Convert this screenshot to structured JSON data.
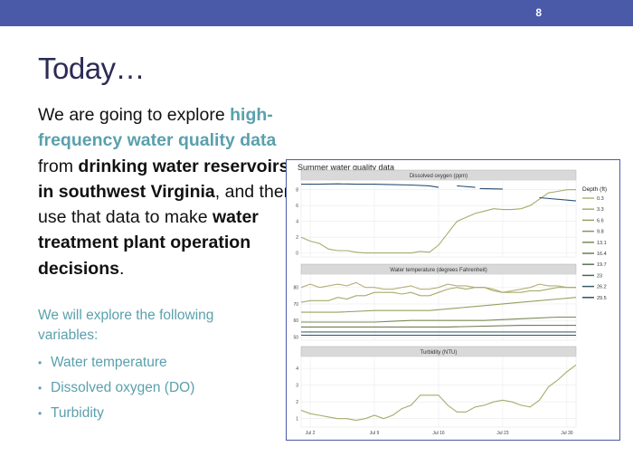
{
  "header": {
    "slide_number": "8"
  },
  "slide": {
    "title": "Today…",
    "body": {
      "p1": "We are going to explore ",
      "p2": "high-frequency water quality data",
      "p3": " from ",
      "p4": "drinking water reservoirs in southwest Virginia",
      "p5": ", and then use that data to make ",
      "p6": "water treatment plant operation decisions",
      "p7": "."
    },
    "subheading": "We will explore the following variables:",
    "bullets": [
      "Water temperature",
      "Dissolved oxygen (DO)",
      "Turbidity"
    ]
  },
  "colors": {
    "header_bar": "#4a5aa8",
    "title": "#2b2b55",
    "highlight": "#5aa0ad",
    "panel_strip": "#d9d9d9",
    "grid": "#ebebeb",
    "frame": "#4a5aa8"
  },
  "chart_data": {
    "type": "line",
    "title": "Summer water quality data",
    "x_ticks": [
      "Jul 2",
      "Jul 9",
      "Jul 16",
      "Jul 23",
      "Jul 30"
    ],
    "x_tick_days": [
      2,
      9,
      16,
      23,
      30
    ],
    "xlim": [
      1,
      31
    ],
    "legend": {
      "title": "Depth (ft)",
      "placement": "right",
      "entries": [
        {
          "label": "0.3",
          "color": "#b5b079"
        },
        {
          "label": "3.3",
          "color": "#a7ab6a"
        },
        {
          "label": "6.6",
          "color": "#96a05f"
        },
        {
          "label": "9.8",
          "color": "#879558"
        },
        {
          "label": "13.1",
          "color": "#798a55"
        },
        {
          "label": "16.4",
          "color": "#6a7f55"
        },
        {
          "label": "19.7",
          "color": "#5b7459"
        },
        {
          "label": "23",
          "color": "#4a6760"
        },
        {
          "label": "26.2",
          "color": "#395b69"
        },
        {
          "label": "29.5",
          "color": "#2a4f74"
        }
      ]
    },
    "panels": [
      {
        "title": "Dissolved oxygen (ppm)",
        "yticks": [
          0,
          2,
          4,
          6,
          8
        ],
        "ylim": [
          -0.5,
          9
        ],
        "series": [
          {
            "color": "#a7ab6a",
            "x": [
              1,
              2,
              3,
              4,
              5,
              6,
              7,
              8,
              9,
              10,
              11,
              12,
              13,
              14,
              15,
              16,
              17,
              18,
              19,
              20,
              21,
              22,
              23,
              24,
              25,
              26,
              27,
              28,
              29,
              30,
              31
            ],
            "y": [
              2.0,
              1.5,
              1.2,
              0.5,
              0.3,
              0.3,
              0.1,
              0.0,
              0.0,
              0.0,
              0.0,
              0.0,
              0.0,
              0.2,
              0.1,
              1.0,
              2.5,
              4.0,
              4.5,
              5.0,
              5.3,
              5.6,
              5.5,
              5.5,
              5.6,
              6.0,
              6.8,
              7.6,
              7.8,
              8.0,
              8.0
            ]
          },
          {
            "color": "#2a4f74",
            "x": [
              1,
              3,
              5,
              7,
              9,
              11,
              13,
              15,
              16
            ],
            "y": [
              8.7,
              8.7,
              8.75,
              8.7,
              8.7,
              8.65,
              8.6,
              8.5,
              8.3
            ]
          },
          {
            "color": "#2a4f74",
            "x": [
              18,
              20
            ],
            "y": [
              8.5,
              8.3
            ]
          },
          {
            "color": "#2a4f74",
            "x": [
              20.5,
              23
            ],
            "y": [
              8.15,
              8.1
            ]
          },
          {
            "color": "#2a4f74",
            "x": [
              27,
              31
            ],
            "y": [
              7.0,
              6.6
            ]
          }
        ]
      },
      {
        "title": "Water temperature (degrees Fahrenheit)",
        "yticks": [
          50,
          60,
          70,
          80
        ],
        "ylim": [
          48,
          87
        ],
        "series": [
          {
            "color": "#b5b079",
            "x": [
              1,
              2,
              3,
              4,
              5,
              6,
              7,
              8,
              9,
              10,
              11,
              12,
              13,
              14,
              15,
              16,
              17,
              18,
              19,
              20,
              21,
              22,
              23,
              24,
              25,
              26,
              27,
              28,
              29,
              30,
              31
            ],
            "y": [
              80,
              82,
              80,
              81,
              82,
              81,
              83,
              80,
              80,
              79,
              79,
              80,
              81,
              79,
              79,
              80,
              82,
              81,
              81,
              80,
              80,
              79,
              77,
              78,
              79,
              80,
              82,
              81,
              81,
              80,
              80
            ]
          },
          {
            "color": "#a7ab6a",
            "x": [
              1,
              2,
              3,
              4,
              5,
              6,
              7,
              8,
              9,
              10,
              11,
              12,
              13,
              14,
              15,
              16,
              17,
              18,
              19,
              20,
              21,
              22,
              23,
              24,
              25,
              26,
              27,
              28,
              29,
              30,
              31
            ],
            "y": [
              71,
              72,
              72,
              72,
              74,
              73,
              75,
              75,
              77,
              77,
              77,
              76,
              77,
              75,
              75,
              77,
              79,
              80,
              79,
              80,
              80,
              78,
              77,
              77,
              77,
              78,
              78,
              79,
              80,
              80,
              80
            ]
          },
          {
            "color": "#96a05f",
            "x": [
              1,
              5,
              9,
              13,
              15,
              17,
              19,
              21,
              23,
              25,
              27,
              29,
              31
            ],
            "y": [
              65,
              65,
              66,
              66,
              66,
              67,
              68,
              69,
              70,
              71,
              72,
              73,
              74
            ]
          },
          {
            "color": "#798a55",
            "x": [
              1,
              5,
              9,
              13,
              17,
              21,
              25,
              29,
              31
            ],
            "y": [
              59,
              59,
              59,
              60,
              60,
              60,
              61,
              62,
              62
            ]
          },
          {
            "color": "#6a7f55",
            "x": [
              1,
              9,
              17,
              25,
              31
            ],
            "y": [
              56,
              56,
              56,
              57,
              57
            ]
          },
          {
            "color": "#4a6760",
            "x": [
              1,
              9,
              17,
              25,
              31
            ],
            "y": [
              53,
              53,
              53,
              53,
              53
            ]
          },
          {
            "color": "#2a4f74",
            "x": [
              1,
              9,
              17,
              25,
              31
            ],
            "y": [
              51,
              51,
              51,
              51,
              51
            ]
          }
        ]
      },
      {
        "title": "Turbidity (NTU)",
        "yticks": [
          1,
          2,
          3,
          4
        ],
        "ylim": [
          0.5,
          4.6
        ],
        "series": [
          {
            "color": "#a7ab6a",
            "x": [
              1,
              2,
              3,
              4,
              5,
              6,
              7,
              8,
              9,
              10,
              11,
              12,
              13,
              14,
              15,
              16,
              17,
              18,
              19,
              20,
              21,
              22,
              23,
              24,
              25,
              26,
              27,
              28,
              29,
              30,
              31
            ],
            "y": [
              1.5,
              1.3,
              1.2,
              1.1,
              1.0,
              1.0,
              0.9,
              1.0,
              1.2,
              1.0,
              1.2,
              1.6,
              1.8,
              2.4,
              2.4,
              2.4,
              1.8,
              1.4,
              1.4,
              1.7,
              1.8,
              2.0,
              2.1,
              2.0,
              1.8,
              1.7,
              2.1,
              2.9,
              3.3,
              3.8,
              4.2
            ]
          }
        ]
      }
    ]
  }
}
